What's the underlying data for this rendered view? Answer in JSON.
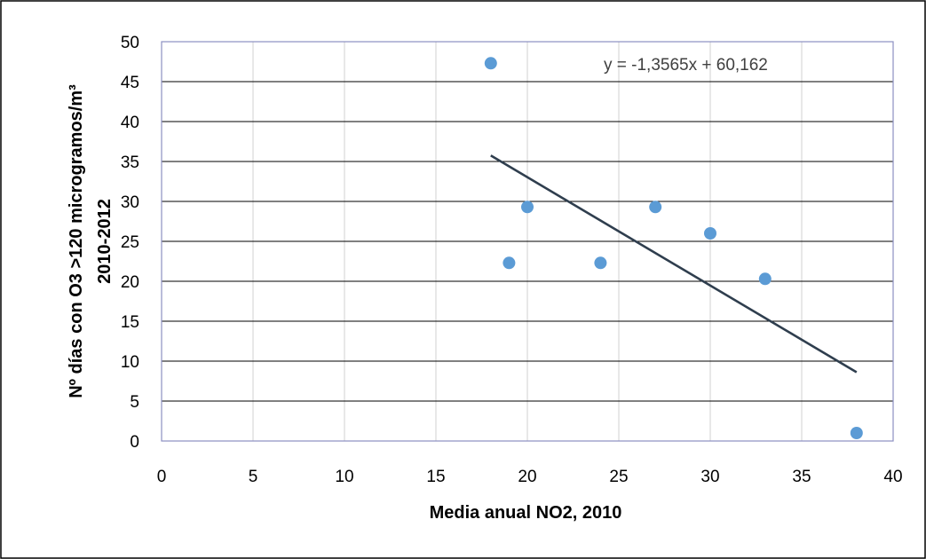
{
  "chart_data": {
    "type": "scatter",
    "title": "",
    "xlabel": "Media anual  NO2, 2010",
    "ylabel_line1": "Nº días con O3 >120 microgramos/m³",
    "ylabel_line2": "2010-2012",
    "xlim": [
      0,
      40
    ],
    "ylim": [
      0,
      50
    ],
    "x_ticks": [
      0,
      5,
      10,
      15,
      20,
      25,
      30,
      35,
      40
    ],
    "y_ticks": [
      0,
      5,
      10,
      15,
      20,
      25,
      30,
      35,
      40,
      45,
      50
    ],
    "grid": true,
    "legend": "none",
    "points": [
      {
        "x": 18,
        "y": 47.3
      },
      {
        "x": 19,
        "y": 22.3
      },
      {
        "x": 20,
        "y": 29.3
      },
      {
        "x": 24,
        "y": 22.3
      },
      {
        "x": 27,
        "y": 29.3
      },
      {
        "x": 30,
        "y": 26
      },
      {
        "x": 33,
        "y": 20.3
      },
      {
        "x": 38,
        "y": 1
      }
    ],
    "trendline": {
      "slope": -1.3565,
      "intercept": 60.162,
      "x_range": [
        18,
        38
      ],
      "equation_label": "y = -1,3565x + 60,162"
    },
    "colors": {
      "point": "#5b9bd5",
      "trendline": "#2f3e4e",
      "grid_horizontal": "#000000",
      "grid_vertical": "#d0d0d0",
      "plot_border": "#8c8fc2"
    }
  }
}
